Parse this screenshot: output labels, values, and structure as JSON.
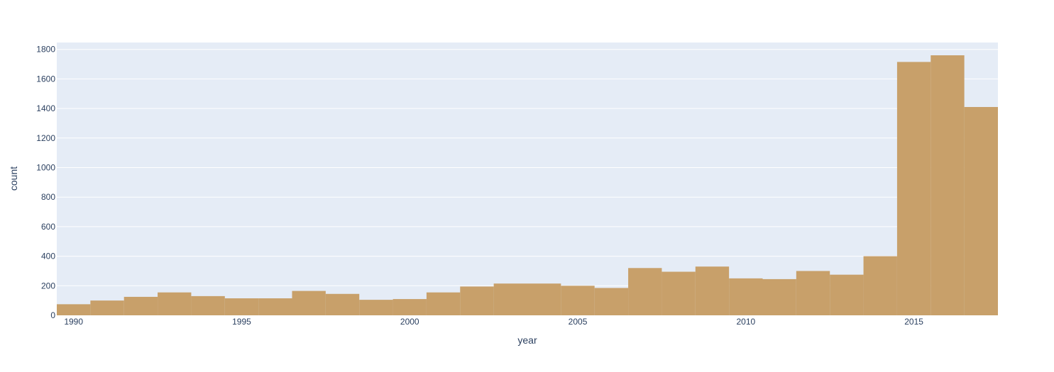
{
  "chart_data": {
    "type": "bar",
    "xlabel": "year",
    "ylabel": "count",
    "bin_width": 1,
    "bins": [
      {
        "x": 1990,
        "y": 75
      },
      {
        "x": 1991,
        "y": 100
      },
      {
        "x": 1992,
        "y": 125
      },
      {
        "x": 1993,
        "y": 155
      },
      {
        "x": 1994,
        "y": 130
      },
      {
        "x": 1995,
        "y": 115
      },
      {
        "x": 1996,
        "y": 115
      },
      {
        "x": 1997,
        "y": 165
      },
      {
        "x": 1998,
        "y": 145
      },
      {
        "x": 1999,
        "y": 105
      },
      {
        "x": 2000,
        "y": 110
      },
      {
        "x": 2001,
        "y": 155
      },
      {
        "x": 2002,
        "y": 195
      },
      {
        "x": 2003,
        "y": 215
      },
      {
        "x": 2004,
        "y": 215
      },
      {
        "x": 2005,
        "y": 200
      },
      {
        "x": 2006,
        "y": 185
      },
      {
        "x": 2007,
        "y": 320
      },
      {
        "x": 2008,
        "y": 295
      },
      {
        "x": 2009,
        "y": 330
      },
      {
        "x": 2010,
        "y": 250
      },
      {
        "x": 2011,
        "y": 245
      },
      {
        "x": 2012,
        "y": 300
      },
      {
        "x": 2013,
        "y": 275
      },
      {
        "x": 2014,
        "y": 400
      },
      {
        "x": 2015,
        "y": 1715
      },
      {
        "x": 2016,
        "y": 1760
      },
      {
        "x": 2017,
        "y": 1410
      }
    ],
    "xlim": [
      1989.5,
      2017.5
    ],
    "ylim": [
      0,
      1800
    ],
    "xticks": [
      "1990",
      "1995",
      "2000",
      "2005",
      "2010",
      "2015"
    ],
    "yticks": [
      "0",
      "200",
      "400",
      "600",
      "800",
      "1000",
      "1200",
      "1400",
      "1600",
      "1800"
    ],
    "grid": true,
    "colors": {
      "bar": "#c8a06a",
      "plot_bg": "#e5ecf6",
      "grid": "#ffffff",
      "text": "#2a3f5f"
    }
  }
}
